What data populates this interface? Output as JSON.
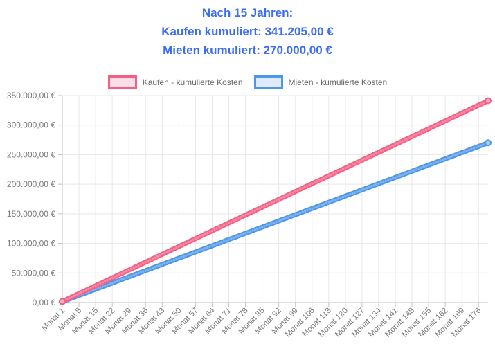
{
  "accent_color": "#3D6DF2",
  "axis_text_color": "#77797c",
  "grid_color": "#e7e7e7",
  "axis_border_color": "#c2c2c2",
  "header": {
    "line1": "Nach 15 Jahren:",
    "line2": "Kaufen kumuliert: 341.205,00 €",
    "line3": "Mieten kumuliert: 270.000,00 €"
  },
  "legend": {
    "items": [
      {
        "id": "kaufen",
        "label": "Kaufen - kumulierte Kosten",
        "fill": "#FBDFE8",
        "border": "#F55F83"
      },
      {
        "id": "mieten",
        "label": "Mieten - kumulierte Kosten",
        "fill": "#DDEBFA",
        "border": "#4D96E8"
      }
    ]
  },
  "chart_data": {
    "type": "line",
    "title": "",
    "xlabel": "",
    "ylabel": "",
    "x_total_months": 180,
    "sample_months": [
      1,
      8,
      15,
      22,
      29,
      36,
      43,
      50,
      57,
      64,
      71,
      78,
      85,
      92,
      99,
      106,
      113,
      120,
      127,
      134,
      141,
      148,
      155,
      162,
      169,
      176,
      180
    ],
    "x_tick_labels": [
      "Monat 1",
      "Monat 8",
      "Monat 15",
      "Monat 22",
      "Monat 29",
      "Monat 36",
      "Monat 43",
      "Monat 50",
      "Monat 57",
      "Monat 64",
      "Monat 71",
      "Monat 78",
      "Monat 85",
      "Monat 92",
      "Monat 99",
      "Monat 106",
      "Monat 113",
      "Monat 120",
      "Monat 127",
      "Monat 134",
      "Monat 141",
      "Monat 148",
      "Monat 155",
      "Monat 162",
      "Monat 169",
      "Monat 176"
    ],
    "y_tick_labels": [
      "0,00 €",
      "50.000,00 €",
      "100.000,00 €",
      "150.000,00 €",
      "200.000,00 €",
      "250.000,00 €",
      "300.000,00 €",
      "350.000,00 €"
    ],
    "y_tick_values": [
      0,
      50000,
      100000,
      150000,
      200000,
      250000,
      300000,
      350000
    ],
    "ylim": [
      0,
      350000
    ],
    "grid": true,
    "legend_position": "top",
    "series": [
      {
        "name": "Kaufen - kumulierte Kosten",
        "color": "#F55F83",
        "point_fill": "#F9B3C6",
        "values": [
          1895.58,
          15164.67,
          28433.75,
          41702.83,
          54971.92,
          68241.0,
          81510.08,
          94779.17,
          108048.25,
          121317.33,
          134586.42,
          147855.5,
          161124.58,
          174393.67,
          187662.75,
          200931.83,
          214200.92,
          227470.0,
          240739.08,
          254008.17,
          267277.25,
          280546.33,
          293815.42,
          307084.5,
          320353.58,
          333622.67,
          341205.0
        ]
      },
      {
        "name": "Mieten - kumulierte Kosten",
        "color": "#4D96E8",
        "point_fill": "#AFD0F2",
        "values": [
          1500,
          12000,
          22500,
          33000,
          43500,
          54000,
          64500,
          75000,
          85500,
          96000,
          106500,
          117000,
          127500,
          138000,
          148500,
          159000,
          169500,
          180000,
          190500,
          201000,
          211500,
          222000,
          232500,
          243000,
          253500,
          264000,
          270000
        ]
      }
    ]
  }
}
